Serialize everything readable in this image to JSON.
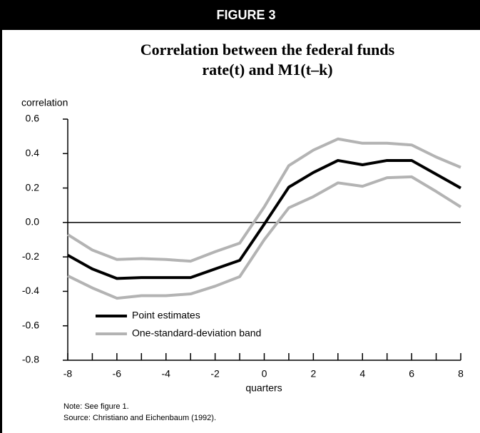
{
  "header": "FIGURE 3",
  "chart_data": {
    "type": "line",
    "title_lines": [
      "Correlation between the federal funds",
      "rate(t) and M1(t–k)"
    ],
    "ylabel": "correlation",
    "xlabel": "quarters",
    "x": [
      -8,
      -7,
      -6,
      -5,
      -4,
      -3,
      -2,
      -1,
      0,
      1,
      2,
      3,
      4,
      5,
      6,
      7,
      8
    ],
    "series": [
      {
        "name": "Point estimates",
        "color": "#000000",
        "values": [
          -0.19,
          -0.27,
          -0.325,
          -0.32,
          -0.32,
          -0.32,
          -0.27,
          -0.22,
          -0.01,
          0.205,
          0.29,
          0.36,
          0.335,
          0.36,
          0.36,
          0.28,
          0.2
        ]
      },
      {
        "name": "One-standard-deviation band",
        "color": "#b3b3b3",
        "values": [
          -0.07,
          -0.16,
          -0.215,
          -0.21,
          -0.215,
          -0.225,
          -0.17,
          -0.12,
          0.09,
          0.33,
          0.42,
          0.485,
          0.46,
          0.46,
          0.45,
          0.38,
          0.32
        ],
        "lower": [
          -0.31,
          -0.38,
          -0.44,
          -0.425,
          -0.425,
          -0.415,
          -0.37,
          -0.315,
          -0.1,
          0.085,
          0.15,
          0.23,
          0.21,
          0.26,
          0.265,
          0.18,
          0.09
        ]
      }
    ],
    "xlim": [
      -8,
      8
    ],
    "xticks": [
      -8,
      -6,
      -4,
      -2,
      0,
      2,
      4,
      6,
      8
    ],
    "ylim": [
      -0.8,
      0.6
    ],
    "yticks": [
      -0.8,
      -0.6,
      -0.4,
      -0.2,
      {
        "value": 0,
        "label": "0.0"
      },
      0.2,
      0.4,
      0.6
    ],
    "notes": [
      "Note: See figure 1.",
      "Source: Christiano and Eichenbaum (1992)."
    ]
  }
}
